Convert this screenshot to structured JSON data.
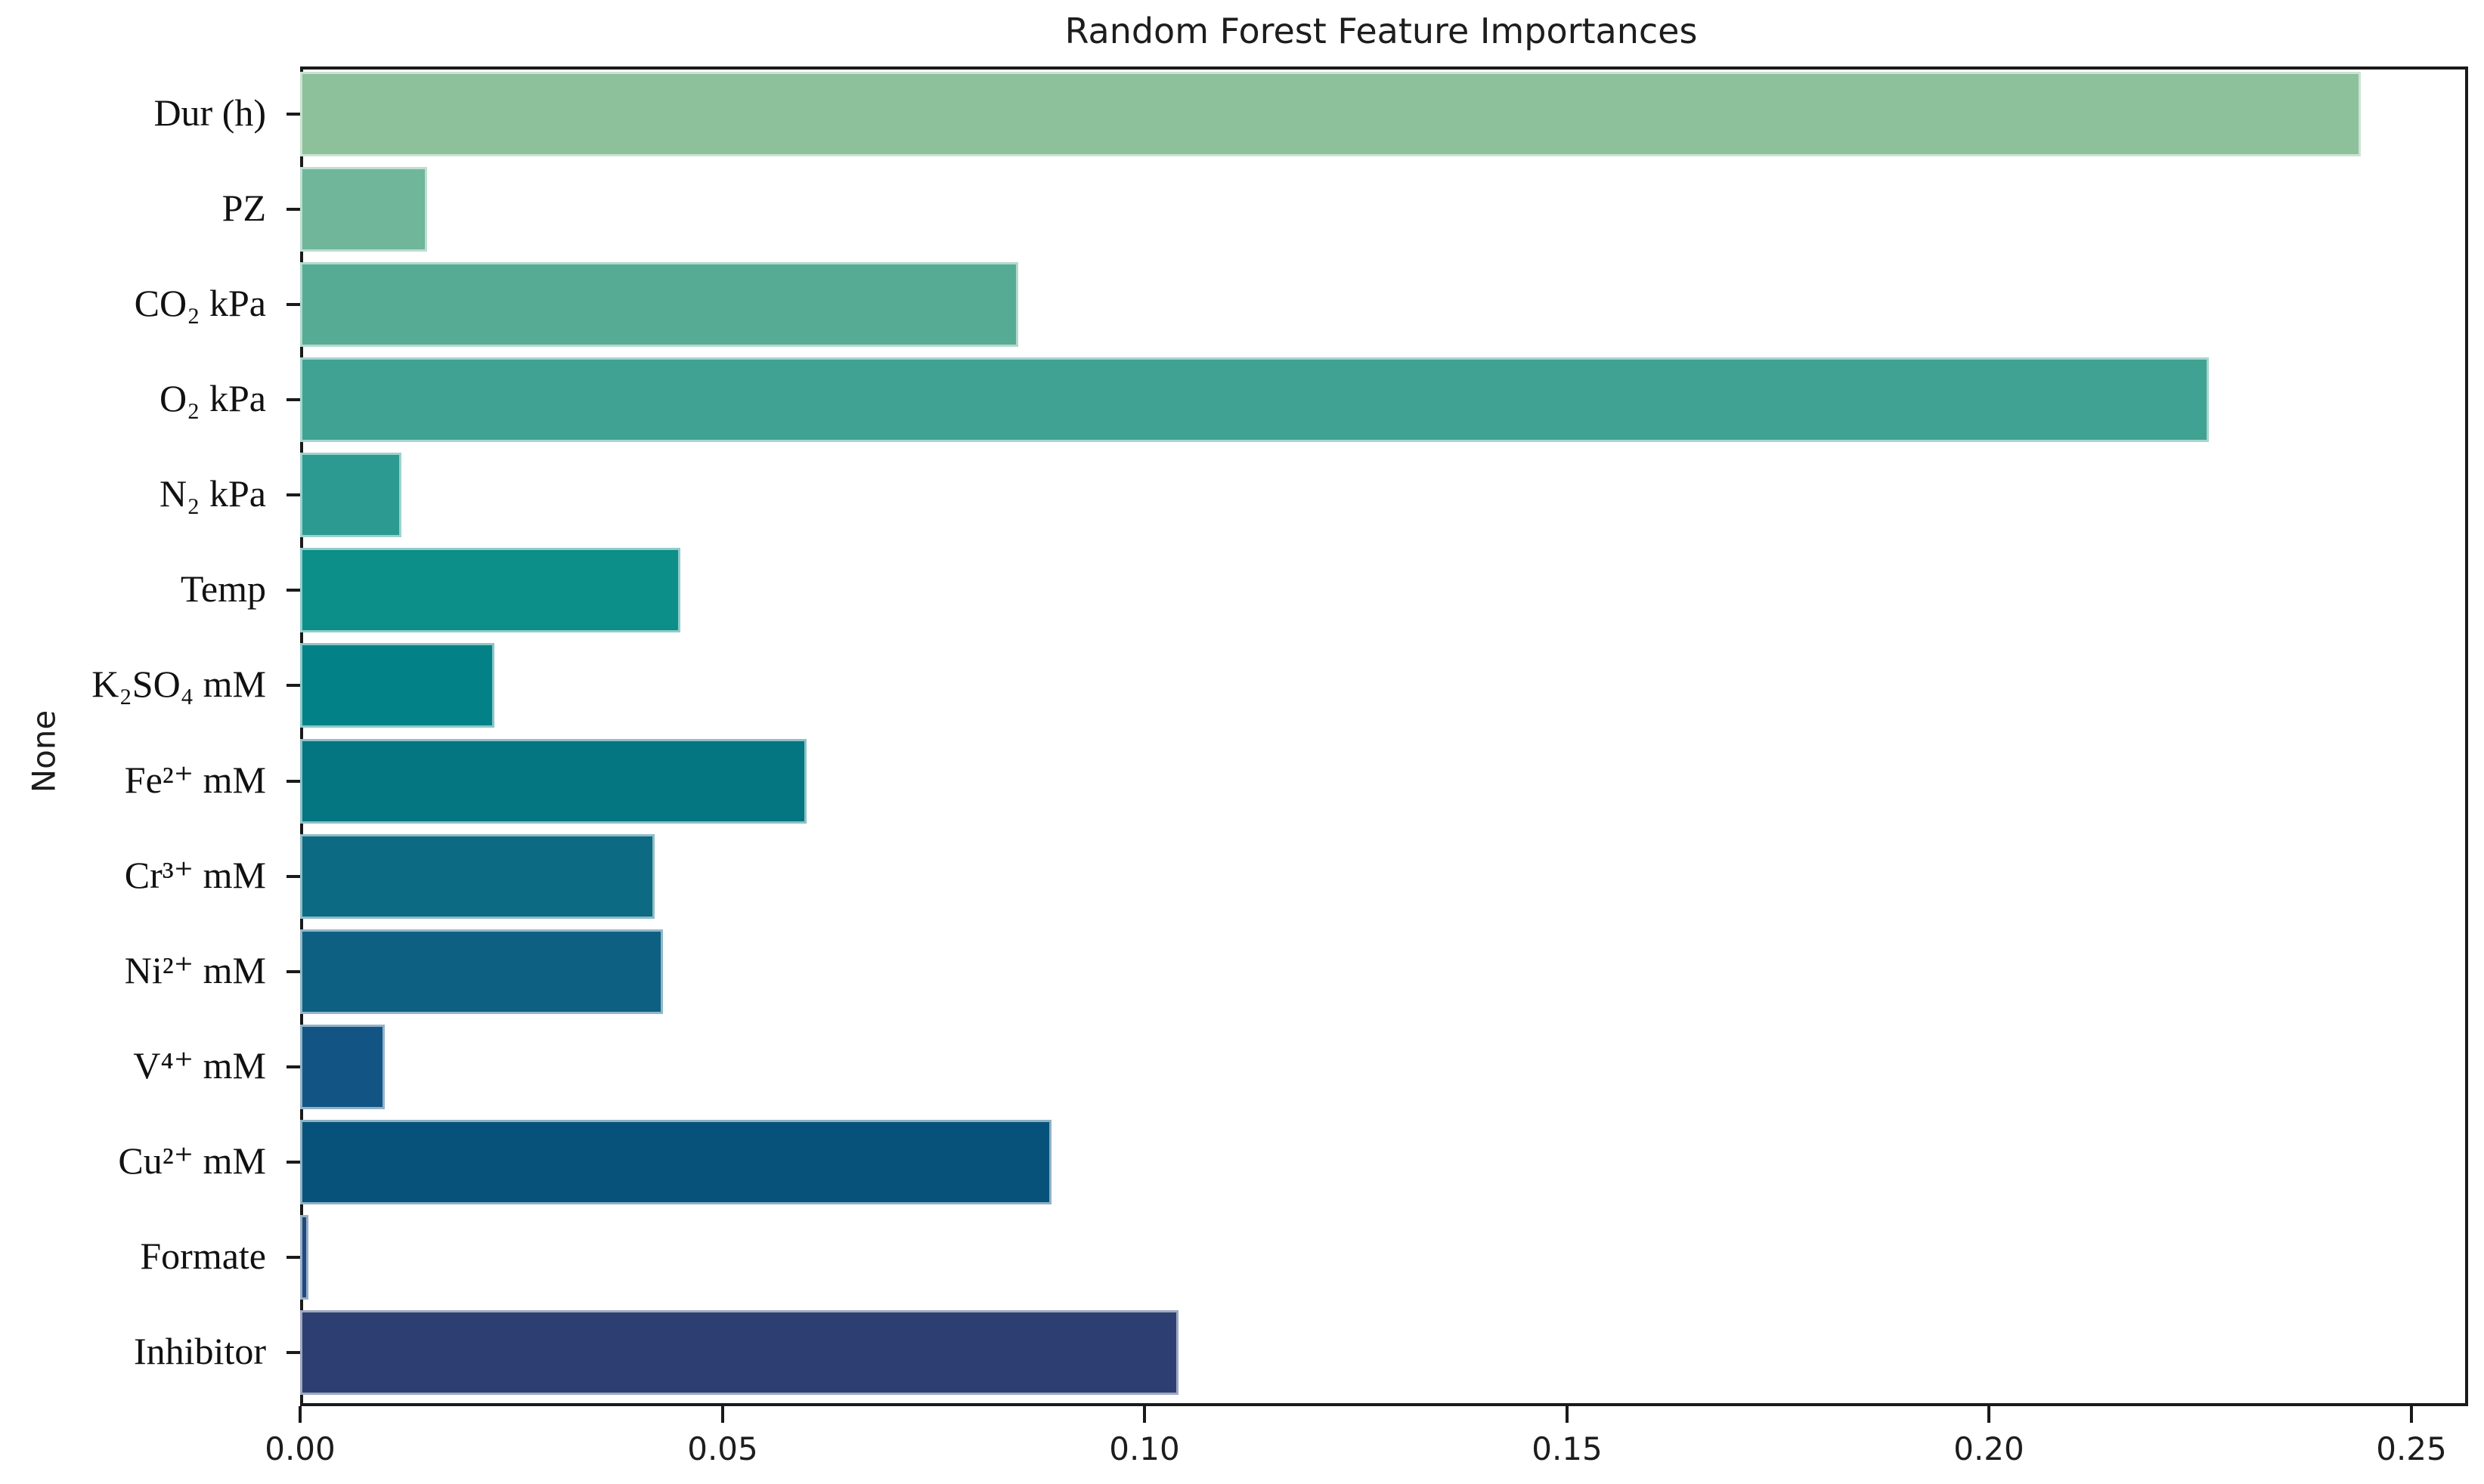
{
  "figure": {
    "background": "#ffffff",
    "axis_color": "#1a1a1a",
    "text_color": "#1d1d1d"
  },
  "chart_data": {
    "type": "bar",
    "orientation": "horizontal",
    "title": "Random Forest Feature Importances",
    "ylabel": "None",
    "xlabel": "",
    "grid": false,
    "legend": false,
    "xlim": [
      0,
      0.256
    ],
    "x_ticks": [
      0.0,
      0.05,
      0.1,
      0.15,
      0.2,
      0.25
    ],
    "x_tick_labels": [
      "0.00",
      "0.05",
      "0.10",
      "0.15",
      "0.20",
      "0.25"
    ],
    "categories": [
      "Dur (h)",
      "PZ",
      "CO₂ kPa",
      "O₂ kPa",
      "N₂ kPa",
      "Temp",
      "K₂SO₄ mM",
      "Fe²⁺ mM",
      "Cr³⁺ mM",
      "Ni²⁺ mM",
      "V⁴⁺ mM",
      "Cu²⁺ mM",
      "Formate",
      "Inhibitor"
    ],
    "values": [
      0.244,
      0.015,
      0.085,
      0.226,
      0.012,
      0.045,
      0.023,
      0.06,
      0.042,
      0.043,
      0.01,
      0.089,
      0.001,
      0.104
    ],
    "bar_colors": [
      "#8cc19b",
      "#6fb69a",
      "#55ab93",
      "#3fa292",
      "#2c9a90",
      "#0c8e89",
      "#028286",
      "#047682",
      "#0c6a82",
      "#0e6083",
      "#125584",
      "#07527a",
      "#1e4a7d",
      "#2d3e72"
    ]
  }
}
